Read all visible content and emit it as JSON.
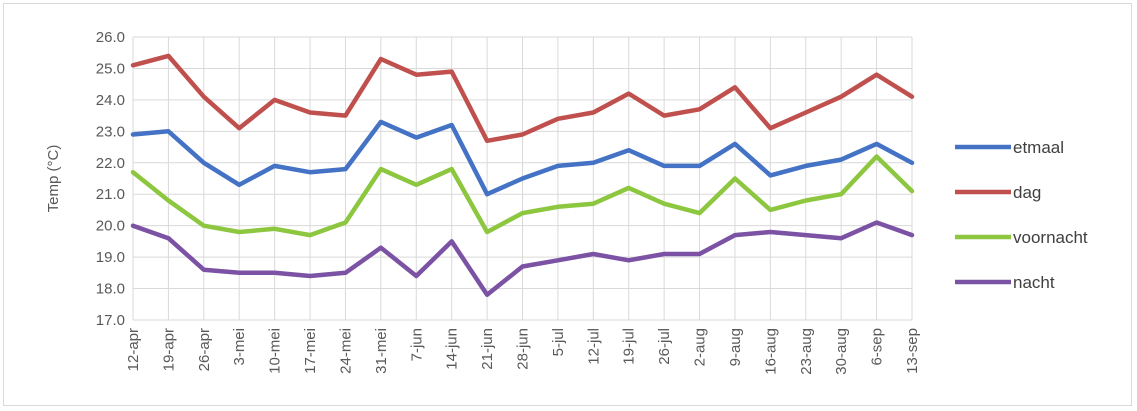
{
  "chart_data": {
    "type": "line",
    "ylabel": "Temp (°C)",
    "xlabel": "",
    "ylim": [
      17.0,
      26.0
    ],
    "ystep": 1.0,
    "grid": true,
    "legend_placement": "right",
    "categories": [
      "12-apr",
      "19-apr",
      "26-apr",
      "3-mei",
      "10-mei",
      "17-mei",
      "24-mei",
      "31-mei",
      "7-jun",
      "14-jun",
      "21-jun",
      "28-jun",
      "5-jul",
      "12-jul",
      "19-jul",
      "26-jul",
      "2-aug",
      "9-aug",
      "16-aug",
      "23-aug",
      "30-aug",
      "6-sep",
      "13-sep"
    ],
    "series": [
      {
        "name": "etmaal",
        "color": "#4472c4",
        "values": [
          22.9,
          23.0,
          22.0,
          21.3,
          21.9,
          21.7,
          21.8,
          23.3,
          22.8,
          23.2,
          21.0,
          21.5,
          21.9,
          22.0,
          22.4,
          21.9,
          21.9,
          22.6,
          21.6,
          21.9,
          22.1,
          22.6,
          22.0
        ]
      },
      {
        "name": "dag",
        "color": "#c0504d",
        "values": [
          25.1,
          25.4,
          24.1,
          23.1,
          24.0,
          23.6,
          23.5,
          25.3,
          24.8,
          24.9,
          22.7,
          22.9,
          23.4,
          23.6,
          24.2,
          23.5,
          23.7,
          24.4,
          23.1,
          23.6,
          24.1,
          24.8,
          24.1
        ]
      },
      {
        "name": "voornacht",
        "color": "#8dc63f",
        "values": [
          21.7,
          20.8,
          20.0,
          19.8,
          19.9,
          19.7,
          20.1,
          21.8,
          21.3,
          21.8,
          19.8,
          20.4,
          20.6,
          20.7,
          21.2,
          20.7,
          20.4,
          21.5,
          20.5,
          20.8,
          21.0,
          22.2,
          21.1
        ]
      },
      {
        "name": "nacht",
        "color": "#7b52a4",
        "values": [
          20.0,
          19.6,
          18.6,
          18.5,
          18.5,
          18.4,
          18.5,
          19.3,
          18.4,
          19.5,
          17.8,
          18.7,
          18.9,
          19.1,
          18.9,
          19.1,
          19.1,
          19.7,
          19.8,
          19.7,
          19.6,
          20.1,
          19.7
        ]
      }
    ]
  }
}
